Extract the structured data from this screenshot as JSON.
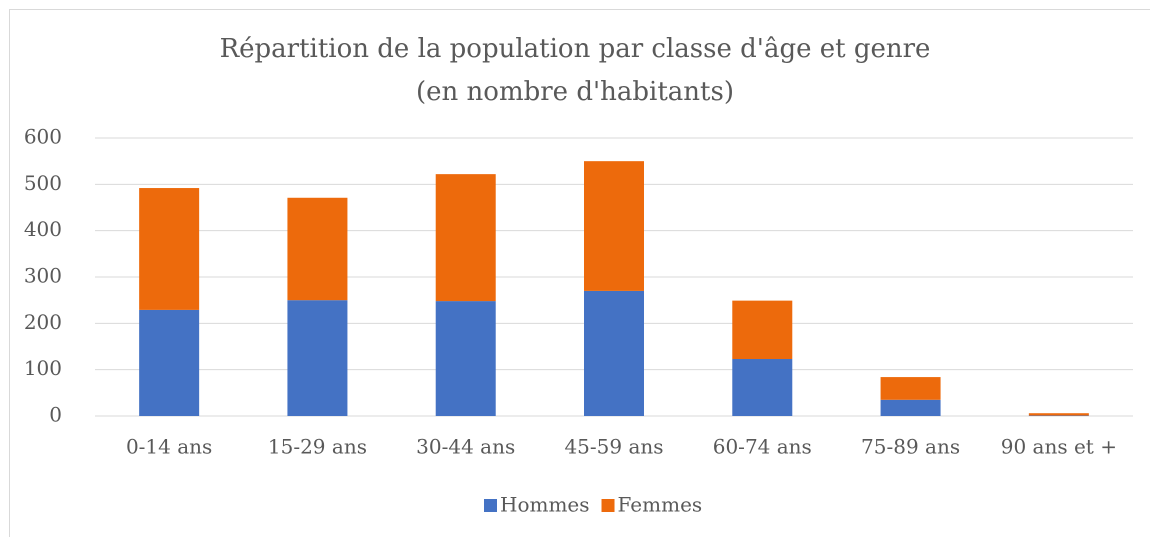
{
  "chart_data": {
    "type": "stacked_bar",
    "title": [
      "Répartition de la population par classe d'âge et genre",
      "(en nombre d'habitants)"
    ],
    "categories": [
      "0-14 ans",
      "15-29 ans",
      "30-44 ans",
      "45-59 ans",
      "60-74 ans",
      "75-89 ans",
      "90 ans et +"
    ],
    "series": [
      {
        "name": "Hommes",
        "color": "#4472c4",
        "values": [
          229,
          250,
          248,
          270,
          123,
          35,
          1
        ]
      },
      {
        "name": "Femmes",
        "color": "#ed6a0c",
        "values": [
          263,
          221,
          274,
          280,
          126,
          49,
          5
        ]
      }
    ],
    "ylim": [
      0,
      600
    ],
    "yticks": [
      0,
      100,
      200,
      300,
      400,
      500,
      600
    ],
    "grid": true,
    "legend": "bottom"
  }
}
